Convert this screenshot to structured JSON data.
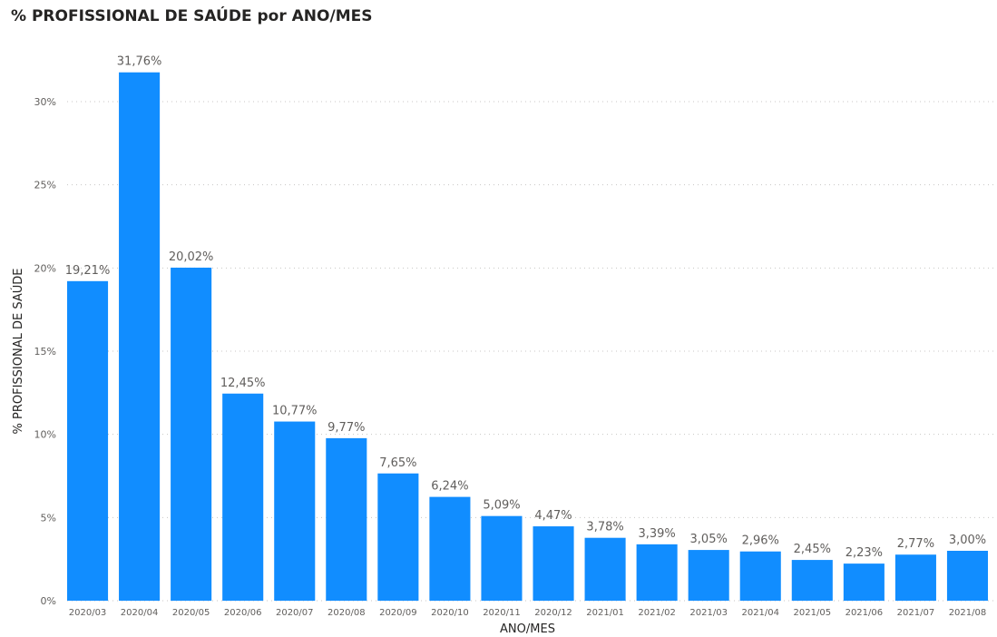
{
  "chart_data": {
    "type": "bar",
    "title": "% PROFISSIONAL DE SAÚDE por ANO/MES",
    "xlabel": "ANO/MES",
    "ylabel": "% PROFISSIONAL DE SAÚDE",
    "ylim": [
      0,
      32
    ],
    "yticks": [
      0,
      5,
      10,
      15,
      20,
      25,
      30
    ],
    "ytick_labels": [
      "0%",
      "5%",
      "10%",
      "15%",
      "20%",
      "25%",
      "30%"
    ],
    "grid": true,
    "bar_color": "#118dff",
    "categories": [
      "2020/03",
      "2020/04",
      "2020/05",
      "2020/06",
      "2020/07",
      "2020/08",
      "2020/09",
      "2020/10",
      "2020/11",
      "2020/12",
      "2021/01",
      "2021/02",
      "2021/03",
      "2021/04",
      "2021/05",
      "2021/06",
      "2021/07",
      "2021/08"
    ],
    "values": [
      19.21,
      31.76,
      20.02,
      12.45,
      10.77,
      9.77,
      7.65,
      6.24,
      5.09,
      4.47,
      3.78,
      3.39,
      3.05,
      2.96,
      2.45,
      2.23,
      2.77,
      3.0
    ],
    "value_labels": [
      "19,21%",
      "31,76%",
      "20,02%",
      "12,45%",
      "10,77%",
      "9,77%",
      "7,65%",
      "6,24%",
      "5,09%",
      "4,47%",
      "3,78%",
      "3,39%",
      "3,05%",
      "2,96%",
      "2,45%",
      "2,23%",
      "2,77%",
      "3,00%"
    ]
  }
}
